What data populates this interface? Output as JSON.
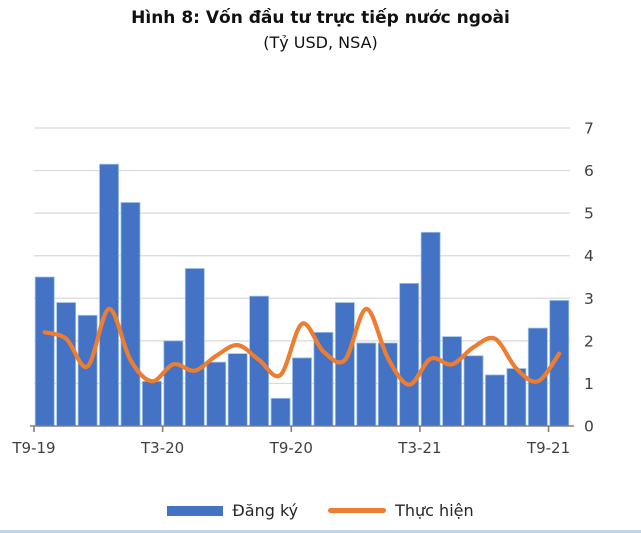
{
  "header": {
    "title": "Hình 8: Vốn đầu tư trực tiếp nước ngoài",
    "subtitle": "(Tỷ USD, NSA)"
  },
  "legend": {
    "position": "bottom",
    "items": [
      {
        "label": "Đăng ký",
        "type": "bar",
        "color": "#4472C4"
      },
      {
        "label": "Thực hiện",
        "type": "line",
        "color": "#ED7D31"
      }
    ]
  },
  "colors": {
    "bar_fill": "#4472C4",
    "bar_border": "#9DC3E6",
    "line": "#ED7D31",
    "gridline": "#D9D9D9",
    "axis_line": "#808080",
    "axis_text": "#3F3F3F",
    "bottom_border": "#BDD7EE"
  },
  "chart_data": {
    "type": "combo",
    "title": "Hình 8: Vốn đầu tư trực tiếp nước ngoài",
    "subtitle": "(Tỷ USD, NSA)",
    "xlabel": "",
    "ylabel": "",
    "ylim": [
      0,
      7
    ],
    "y_ticks": [
      0,
      1,
      2,
      3,
      4,
      5,
      6,
      7
    ],
    "y_axis_side": "right",
    "grid": true,
    "legend_position": "bottom",
    "categories": [
      "T9-19",
      "T10-19",
      "T11-19",
      "T12-19",
      "T1-20",
      "T2-20",
      "T3-20",
      "T4-20",
      "T5-20",
      "T6-20",
      "T7-20",
      "T8-20",
      "T9-20",
      "T10-20",
      "T11-20",
      "T12-20",
      "T1-21",
      "T2-21",
      "T3-21",
      "T4-21",
      "T5-21",
      "T6-21",
      "T7-21",
      "T8-21",
      "T9-21"
    ],
    "x_tick_labels": [
      "T9-19",
      "T3-20",
      "T9-20",
      "T3-21",
      "T9-21"
    ],
    "x_tick_indices": [
      0,
      6,
      12,
      18,
      24
    ],
    "series": [
      {
        "name": "Đăng ký",
        "type": "bar",
        "color": "#4472C4",
        "values": [
          3.5,
          2.9,
          2.6,
          6.15,
          5.25,
          1.05,
          2.0,
          3.7,
          1.5,
          1.7,
          3.05,
          0.65,
          1.6,
          2.2,
          2.9,
          1.95,
          1.95,
          3.35,
          4.55,
          2.1,
          1.65,
          1.2,
          1.35,
          2.3,
          2.95
        ]
      },
      {
        "name": "Thực hiện",
        "type": "line",
        "smooth": true,
        "color": "#ED7D31",
        "values": [
          2.2,
          2.05,
          1.4,
          2.75,
          1.55,
          1.05,
          1.45,
          1.3,
          1.65,
          1.9,
          1.55,
          1.2,
          2.4,
          1.75,
          1.55,
          2.75,
          1.6,
          0.97,
          1.58,
          1.45,
          1.85,
          2.05,
          1.35,
          1.05,
          1.7
        ]
      }
    ]
  }
}
